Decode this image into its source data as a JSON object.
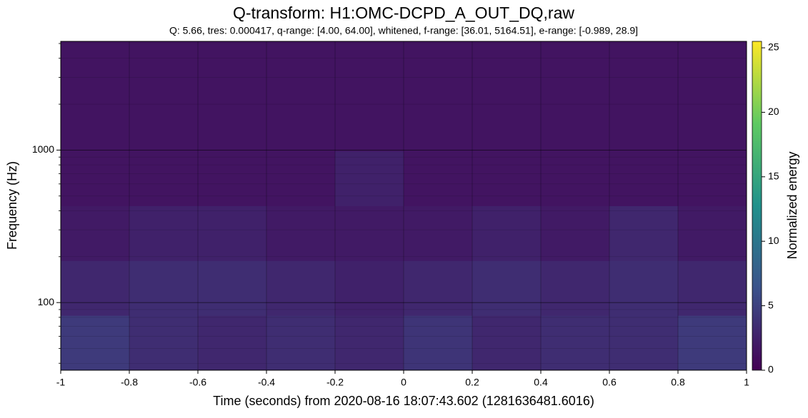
{
  "chart_data": {
    "type": "heatmap",
    "title": "Q-transform: H1:OMC-DCPD_A_OUT_DQ,raw",
    "subtitle": "Q: 5.66, tres: 0.000417, q-range: [4.00, 64.00], whitened, f-range: [36.01, 5164.51], e-range: [-0.989, 28.9]",
    "x_label": "Time (seconds) from 2020-08-16 18:07:43.602 (1281636481.6016)",
    "y_label": "Frequency (Hz)",
    "colorbar_label": "Normalized energy",
    "xlim": [
      -1,
      1
    ],
    "xticks": [
      -1,
      -0.8,
      -0.6,
      -0.4,
      -0.2,
      0,
      0.2,
      0.4,
      0.6,
      0.8,
      1
    ],
    "ylim": [
      36.01,
      5164.51
    ],
    "yticks": [
      100,
      1000
    ],
    "log_y": true,
    "grid": true,
    "clim": [
      0,
      25.5
    ],
    "cticks": [
      0,
      5,
      10,
      15,
      20,
      25
    ],
    "colormap": "viridis",
    "z": [
      [
        4.5,
        3.5,
        3,
        3.5,
        3,
        4,
        3,
        3.5,
        3.5,
        4.5
      ],
      [
        3,
        3.5,
        3.5,
        3,
        2.5,
        3,
        3.5,
        3,
        3.5,
        3
      ],
      [
        2,
        2.5,
        2.5,
        2,
        2,
        2,
        2.5,
        2,
        3,
        2
      ],
      [
        1.5,
        1.5,
        1.5,
        1.5,
        2.5,
        1.5,
        1.5,
        1.5,
        1.5,
        1.5
      ],
      [
        1.5,
        1.5,
        1.5,
        1.5,
        1.5,
        1.5,
        1.5,
        1.5,
        1.5,
        1.5
      ],
      [
        1.5,
        1.5,
        1.5,
        1.5,
        1.5,
        1.5,
        1.5,
        1.5,
        1.5,
        1.5
      ]
    ]
  }
}
